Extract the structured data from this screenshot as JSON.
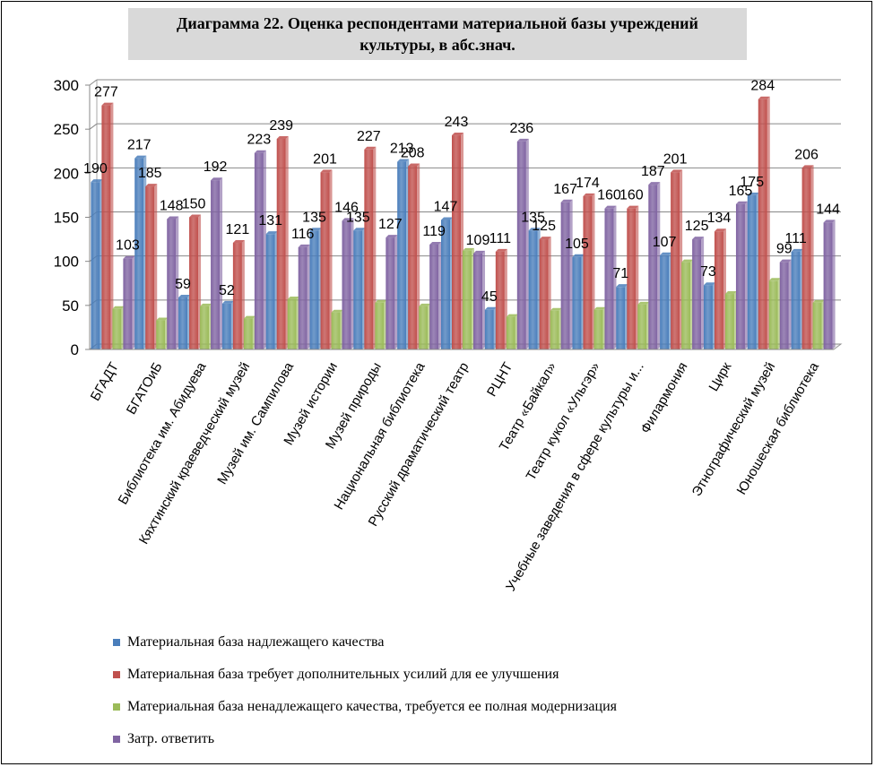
{
  "chart_data": {
    "type": "bar",
    "title": "Диаграмма 22.  Оценка респондентами материальной базы учреждений культуры, в абс.знач.",
    "categories": [
      "БГАДТ",
      "БГАТОиБ",
      "Библиотека им. Абидуева",
      "Кяхтинский краеведческий музей",
      "Музей им. Сампилова",
      "Музей истории",
      "Музей природы",
      "Национальная библиотека",
      "Русский драматический театр",
      "РЦНТ",
      "Театр «Байкал»",
      "Театр кукол «Ульгэр»",
      "Учебные заведения в сфере культуры и...",
      "Филармония",
      "Цирк",
      "Этнографический музей",
      "Юношеская библиотека"
    ],
    "series": [
      {
        "name": "Материальная база надлежащего качества",
        "color": "#4a7ebb",
        "values": [
          190,
          217,
          59,
          52,
          131,
          135,
          135,
          213,
          147,
          45,
          135,
          105,
          71,
          107,
          73,
          175,
          111
        ]
      },
      {
        "name": "Материальная база требует дополнительных усилий для ее улучшения",
        "color": "#c0504d",
        "values": [
          277,
          185,
          150,
          121,
          239,
          201,
          227,
          208,
          243,
          111,
          125,
          174,
          160,
          201,
          134,
          284,
          206
        ]
      },
      {
        "name": "Материальная база ненадлежащего качества, требуется ее полная модернизация",
        "color": "#9bbb59",
        "values": [
          46,
          33,
          49,
          35,
          57,
          42,
          53,
          49,
          112,
          37,
          44,
          45,
          51,
          99,
          63,
          78,
          53
        ]
      },
      {
        "name": "Затр. ответить",
        "color": "#8064a2",
        "values": [
          103,
          148,
          192,
          223,
          116,
          146,
          127,
          119,
          109,
          236,
          167,
          160,
          187,
          125,
          165,
          99,
          144
        ]
      }
    ],
    "labeled_series": [
      0,
      1,
      3
    ],
    "y_ticks": [
      "0",
      "50",
      "100",
      "150",
      "200",
      "250",
      "300"
    ],
    "ylim": [
      0,
      300
    ],
    "grid": true,
    "legend_position": "bottom-left"
  }
}
